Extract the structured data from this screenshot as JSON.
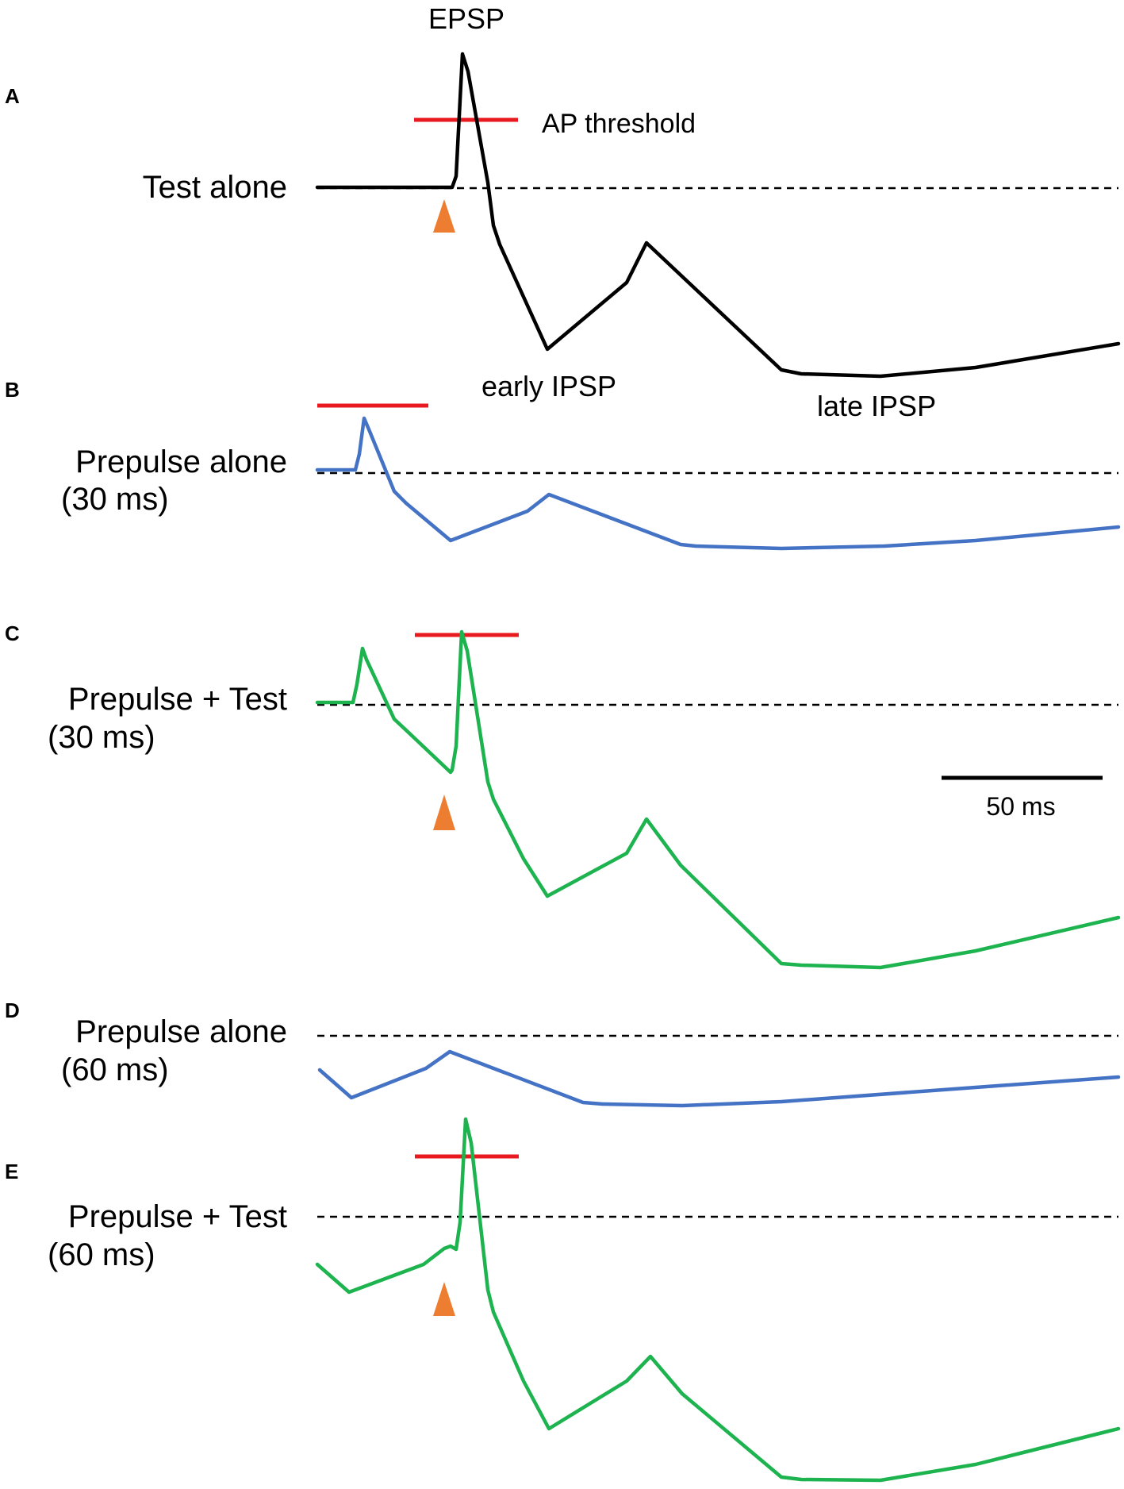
{
  "colors": {
    "test_trace": "#000000",
    "prepulse_trace": "#4472C4",
    "combined_trace": "#1DB34F",
    "threshold": "#E8191F",
    "stimulus_marker": "#ED7D31"
  },
  "icons": {
    "stimulus_marker": "orange-triangle-icon"
  },
  "annotations": {
    "epsp": "EPSP",
    "ap_threshold": "AP threshold",
    "early_ipsp": "early IPSP",
    "late_ipsp": "late IPSP"
  },
  "scale_bar": {
    "label": "50 ms"
  },
  "panels": [
    {
      "letter": "A",
      "label_lines": [
        "Test alone"
      ]
    },
    {
      "letter": "B",
      "label_lines": [
        "Prepulse alone",
        "(30 ms)"
      ]
    },
    {
      "letter": "C",
      "label_lines": [
        "Prepulse + Test",
        "(30 ms)"
      ]
    },
    {
      "letter": "D",
      "label_lines": [
        "Prepulse alone",
        "(60 ms)"
      ]
    },
    {
      "letter": "E",
      "label_lines": [
        "Prepulse + Test",
        "(60 ms)"
      ]
    }
  ]
}
